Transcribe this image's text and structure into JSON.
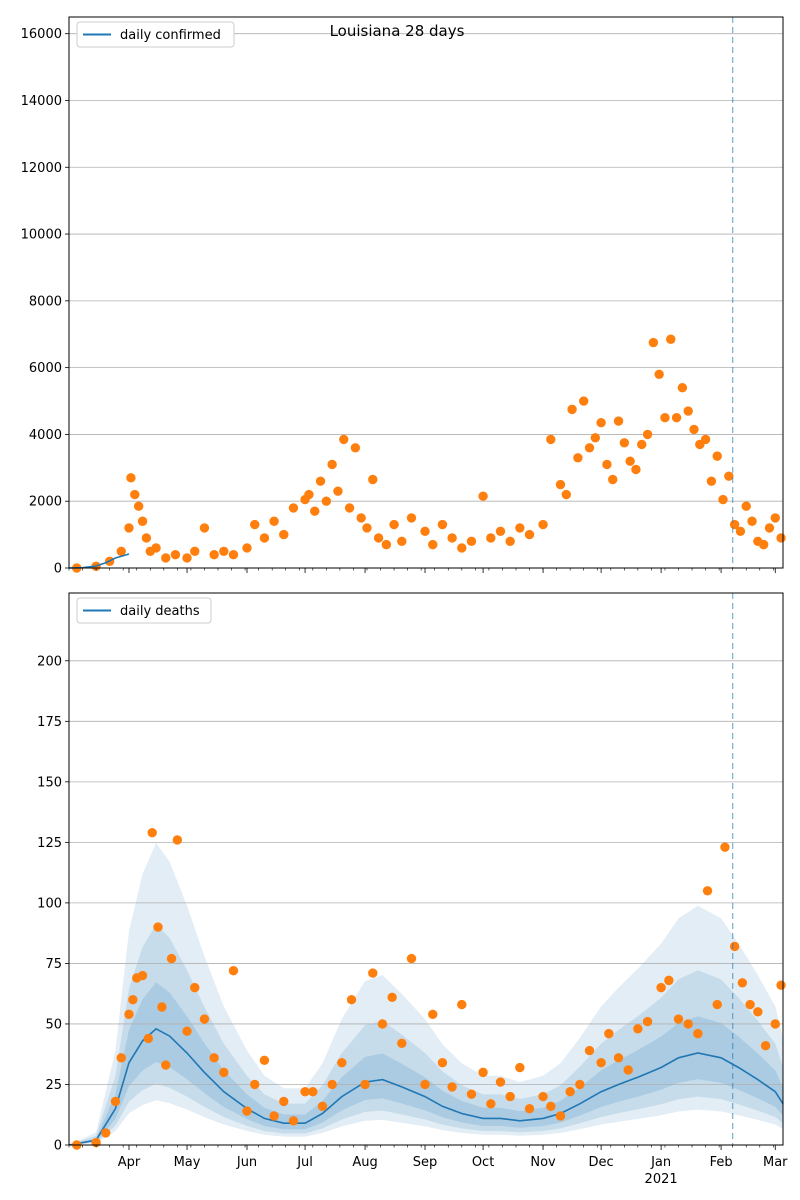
{
  "colors": {
    "line": "#1f77b4",
    "points": "#ff7f0e",
    "band": "#1f77b4",
    "grid": "#b0b0b0",
    "vline": "#1f77b4"
  },
  "chart_data": [
    {
      "type": "scatter",
      "title": "Louisiana 28 days",
      "xlabel": "",
      "ylabel": "",
      "ylim": [
        0,
        16500
      ],
      "yticks": [
        0,
        2000,
        4000,
        6000,
        8000,
        10000,
        12000,
        14000,
        16000
      ],
      "ytick_labels": [
        "0",
        "2000",
        "4000",
        "6000",
        "8000",
        "10000",
        "12000",
        "14000",
        "16000"
      ],
      "grid": true,
      "legend_position": "top-left",
      "series": [
        {
          "name": "daily confirmed",
          "kind": "line",
          "x": [
            "2020-03-01",
            "2020-03-08",
            "2020-03-15",
            "2020-03-20",
            "2020-03-25",
            "2020-04-01"
          ],
          "values": [
            0,
            10,
            60,
            160,
            300,
            420
          ]
        },
        {
          "name": "",
          "kind": "points",
          "x": [
            "2020-03-05",
            "2020-03-15",
            "2020-03-22",
            "2020-03-28",
            "2020-04-01",
            "2020-04-02",
            "2020-04-04",
            "2020-04-06",
            "2020-04-08",
            "2020-04-10",
            "2020-04-12",
            "2020-04-15",
            "2020-04-20",
            "2020-04-25",
            "2020-05-01",
            "2020-05-05",
            "2020-05-10",
            "2020-05-15",
            "2020-05-20",
            "2020-05-25",
            "2020-06-01",
            "2020-06-05",
            "2020-06-10",
            "2020-06-15",
            "2020-06-20",
            "2020-06-25",
            "2020-07-01",
            "2020-07-03",
            "2020-07-06",
            "2020-07-09",
            "2020-07-12",
            "2020-07-15",
            "2020-07-18",
            "2020-07-21",
            "2020-07-24",
            "2020-07-27",
            "2020-07-30",
            "2020-08-02",
            "2020-08-05",
            "2020-08-08",
            "2020-08-12",
            "2020-08-16",
            "2020-08-20",
            "2020-08-25",
            "2020-09-01",
            "2020-09-05",
            "2020-09-10",
            "2020-09-15",
            "2020-09-20",
            "2020-09-25",
            "2020-10-01",
            "2020-10-05",
            "2020-10-10",
            "2020-10-15",
            "2020-10-20",
            "2020-10-25",
            "2020-11-01",
            "2020-11-05",
            "2020-11-10",
            "2020-11-13",
            "2020-11-16",
            "2020-11-19",
            "2020-11-22",
            "2020-11-25",
            "2020-11-28",
            "2020-12-01",
            "2020-12-04",
            "2020-12-07",
            "2020-12-10",
            "2020-12-13",
            "2020-12-16",
            "2020-12-19",
            "2020-12-22",
            "2020-12-25",
            "2020-12-28",
            "2020-12-31",
            "2021-01-03",
            "2021-01-06",
            "2021-01-09",
            "2021-01-12",
            "2021-01-15",
            "2021-01-18",
            "2021-01-21",
            "2021-01-24",
            "2021-01-27",
            "2021-01-30",
            "2021-02-02",
            "2021-02-05",
            "2021-02-08",
            "2021-02-11",
            "2021-02-14",
            "2021-02-17",
            "2021-02-20",
            "2021-02-23",
            "2021-02-26",
            "2021-03-01",
            "2021-03-04"
          ],
          "values": [
            0,
            50,
            200,
            500,
            1200,
            2700,
            2200,
            1850,
            1400,
            900,
            500,
            600,
            300,
            400,
            300,
            500,
            1200,
            400,
            500,
            400,
            600,
            1300,
            900,
            1400,
            1000,
            1800,
            2050,
            2200,
            1700,
            2600,
            2000,
            3100,
            2300,
            3850,
            1800,
            3600,
            1500,
            1200,
            2650,
            900,
            700,
            1300,
            800,
            1500,
            1100,
            700,
            1300,
            900,
            600,
            800,
            2150,
            900,
            1100,
            800,
            1200,
            1000,
            1300,
            3850,
            2500,
            2200,
            4750,
            3300,
            5000,
            3600,
            3900,
            4350,
            3100,
            2650,
            4400,
            3750,
            3200,
            2950,
            3700,
            4000,
            6750,
            5800,
            4500,
            6850,
            4500,
            5400,
            4700,
            4150,
            3700,
            3850,
            2600,
            3350,
            2050,
            2750,
            1300,
            1100,
            1850,
            1400,
            800,
            700,
            1200,
            1500,
            900
          ]
        }
      ]
    },
    {
      "type": "scatter",
      "title": "",
      "xlabel": "",
      "ylabel": "",
      "ylim": [
        0,
        228
      ],
      "yticks": [
        0,
        25,
        50,
        75,
        100,
        125,
        150,
        175,
        200
      ],
      "ytick_labels": [
        "0",
        "25",
        "50",
        "75",
        "100",
        "125",
        "150",
        "175",
        "200"
      ],
      "grid": true,
      "legend_position": "top-left",
      "xlim": [
        "2020-03-01",
        "2021-03-05"
      ],
      "xticks": [
        {
          "date": "2020-04-01",
          "label": "Apr"
        },
        {
          "date": "2020-05-01",
          "label": "May"
        },
        {
          "date": "2020-06-01",
          "label": "Jun"
        },
        {
          "date": "2020-07-01",
          "label": "Jul"
        },
        {
          "date": "2020-08-01",
          "label": "Aug"
        },
        {
          "date": "2020-09-01",
          "label": "Sep"
        },
        {
          "date": "2020-10-01",
          "label": "Oct"
        },
        {
          "date": "2020-11-01",
          "label": "Nov"
        },
        {
          "date": "2020-12-01",
          "label": "Dec"
        },
        {
          "date": "2021-01-01",
          "label": "Jan"
        },
        {
          "date": "2021-02-01",
          "label": "Feb"
        },
        {
          "date": "2021-03-01",
          "label": "Mar"
        }
      ],
      "year_label": {
        "date": "2021-01-01",
        "label": "2021"
      },
      "vline_date": "2021-02-07",
      "series": [
        {
          "name": "daily deaths",
          "kind": "line",
          "x": [
            "2020-03-01",
            "2020-03-15",
            "2020-03-25",
            "2020-04-01",
            "2020-04-08",
            "2020-04-15",
            "2020-04-22",
            "2020-05-01",
            "2020-05-10",
            "2020-05-20",
            "2020-06-01",
            "2020-06-10",
            "2020-06-20",
            "2020-07-01",
            "2020-07-10",
            "2020-07-20",
            "2020-08-01",
            "2020-08-10",
            "2020-08-20",
            "2020-09-01",
            "2020-09-10",
            "2020-09-20",
            "2020-10-01",
            "2020-10-10",
            "2020-10-20",
            "2020-11-01",
            "2020-11-10",
            "2020-11-20",
            "2020-12-01",
            "2020-12-10",
            "2020-12-20",
            "2021-01-01",
            "2021-01-10",
            "2021-01-20",
            "2021-02-01",
            "2021-02-10",
            "2021-02-20",
            "2021-03-01",
            "2021-03-05"
          ],
          "values": [
            0,
            2,
            15,
            34,
            43,
            48,
            45,
            38,
            30,
            22,
            15,
            11,
            9,
            9,
            13,
            20,
            26,
            27,
            24,
            20,
            16,
            13,
            11,
            11,
            10,
            11,
            13,
            17,
            22,
            25,
            28,
            32,
            36,
            38,
            36,
            32,
            27,
            22,
            17
          ]
        },
        {
          "name": "",
          "kind": "points",
          "x": [
            "2020-03-05",
            "2020-03-15",
            "2020-03-20",
            "2020-03-25",
            "2020-03-28",
            "2020-04-01",
            "2020-04-03",
            "2020-04-05",
            "2020-04-08",
            "2020-04-11",
            "2020-04-13",
            "2020-04-16",
            "2020-04-18",
            "2020-04-20",
            "2020-04-23",
            "2020-04-26",
            "2020-05-01",
            "2020-05-05",
            "2020-05-10",
            "2020-05-15",
            "2020-05-20",
            "2020-05-25",
            "2020-06-01",
            "2020-06-05",
            "2020-06-10",
            "2020-06-15",
            "2020-06-20",
            "2020-06-25",
            "2020-07-01",
            "2020-07-05",
            "2020-07-10",
            "2020-07-15",
            "2020-07-20",
            "2020-07-25",
            "2020-08-01",
            "2020-08-05",
            "2020-08-10",
            "2020-08-15",
            "2020-08-20",
            "2020-08-25",
            "2020-09-01",
            "2020-09-05",
            "2020-09-10",
            "2020-09-15",
            "2020-09-20",
            "2020-09-25",
            "2020-10-01",
            "2020-10-05",
            "2020-10-10",
            "2020-10-15",
            "2020-10-20",
            "2020-10-25",
            "2020-11-01",
            "2020-11-05",
            "2020-11-10",
            "2020-11-15",
            "2020-11-20",
            "2020-11-25",
            "2020-12-01",
            "2020-12-05",
            "2020-12-10",
            "2020-12-15",
            "2020-12-20",
            "2020-12-25",
            "2021-01-01",
            "2021-01-05",
            "2021-01-10",
            "2021-01-15",
            "2021-01-20",
            "2021-01-25",
            "2021-01-30",
            "2021-02-03",
            "2021-02-08",
            "2021-02-12",
            "2021-02-16",
            "2021-02-20",
            "2021-02-24",
            "2021-03-01",
            "2021-03-04"
          ],
          "values": [
            0,
            1,
            5,
            18,
            36,
            54,
            60,
            69,
            70,
            44,
            129,
            90,
            57,
            33,
            77,
            126,
            47,
            65,
            52,
            36,
            30,
            72,
            14,
            25,
            35,
            12,
            18,
            10,
            22,
            22,
            16,
            25,
            34,
            60,
            25,
            71,
            50,
            61,
            42,
            77,
            25,
            54,
            34,
            24,
            58,
            21,
            30,
            17,
            26,
            20,
            32,
            15,
            20,
            16,
            12,
            22,
            25,
            39,
            34,
            46,
            36,
            31,
            48,
            51,
            65,
            68,
            52,
            50,
            46,
            105,
            58,
            123,
            82,
            67,
            58,
            55,
            41,
            50,
            66
          ]
        }
      ]
    }
  ]
}
